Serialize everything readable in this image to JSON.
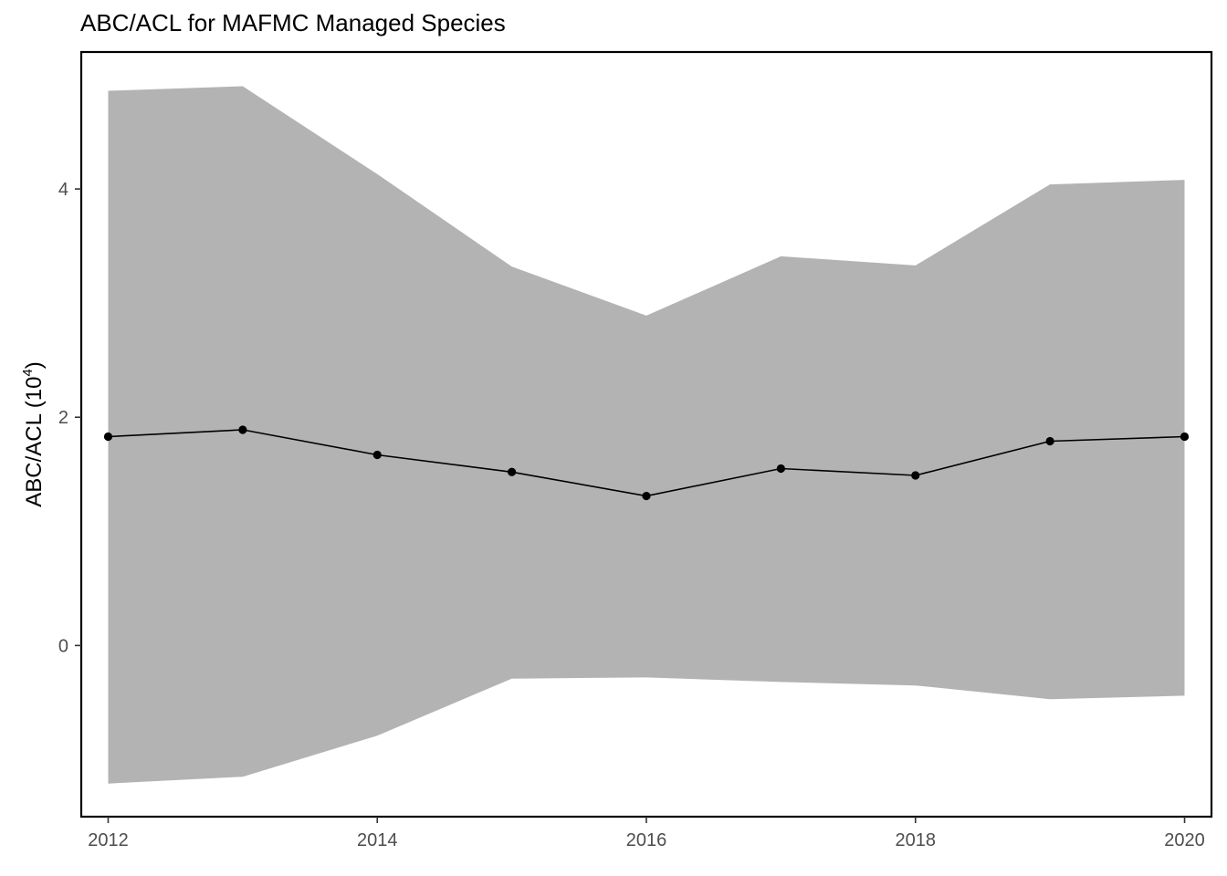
{
  "chart_data": {
    "type": "line",
    "title": "ABC/ACL for MAFMC Managed Species",
    "ylabel_prefix": "ABC/ACL (10",
    "ylabel_exponent": "4",
    "ylabel_suffix": ")",
    "xlabel": "",
    "x": [
      2012,
      2013,
      2014,
      2015,
      2016,
      2017,
      2018,
      2019,
      2020
    ],
    "series": [
      {
        "values": [
          1.83,
          1.89,
          1.67,
          1.52,
          1.31,
          1.55,
          1.49,
          1.79,
          1.83
        ],
        "band_upper": [
          4.86,
          4.9,
          4.13,
          3.32,
          2.89,
          3.41,
          3.33,
          4.04,
          4.08
        ],
        "band_lower": [
          -1.21,
          -1.15,
          -0.79,
          -0.29,
          -0.28,
          -0.32,
          -0.35,
          -0.47,
          -0.44
        ],
        "line_color": "#000000",
        "band_color": "#b3b3b3"
      }
    ],
    "x_ticks": [
      2012,
      2014,
      2016,
      2018,
      2020
    ],
    "y_ticks": [
      0,
      2,
      4
    ],
    "xlim": [
      2011.8,
      2020.2
    ],
    "ylim": [
      -1.5,
      5.2
    ],
    "grid": false,
    "legend": "none"
  }
}
